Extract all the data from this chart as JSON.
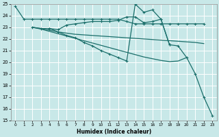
{
  "xlabel": "Humidex (Indice chaleur)",
  "xlim": [
    -0.5,
    23.5
  ],
  "ylim": [
    15,
    25
  ],
  "xticks": [
    0,
    1,
    2,
    3,
    4,
    5,
    6,
    7,
    8,
    9,
    10,
    11,
    12,
    13,
    14,
    15,
    16,
    17,
    18,
    19,
    20,
    21,
    22,
    23
  ],
  "yticks": [
    15,
    16,
    17,
    18,
    19,
    20,
    21,
    22,
    23,
    24,
    25
  ],
  "bg_color": "#c8e8e8",
  "grid_color": "#ffffff",
  "line_color": "#1a6e6a",
  "curves": [
    {
      "x": [
        0,
        1,
        2,
        3,
        4,
        5,
        6,
        7,
        8,
        9,
        10,
        11,
        12,
        13,
        14,
        15,
        16,
        17,
        18,
        19,
        20,
        21,
        22
      ],
      "y": [
        24.8,
        23.7,
        23.7,
        23.7,
        23.7,
        23.7,
        23.7,
        23.7,
        23.7,
        23.7,
        23.7,
        23.7,
        23.7,
        23.5,
        23.3,
        23.3,
        23.3,
        23.3,
        23.3,
        23.3,
        23.3,
        23.3,
        23.3
      ],
      "marker": true
    },
    {
      "x": [
        2,
        3,
        4,
        5,
        6,
        7,
        8,
        9,
        10,
        11,
        12,
        13,
        14,
        15,
        16,
        17,
        18
      ],
      "y": [
        23.0,
        22.9,
        22.9,
        22.8,
        23.2,
        23.3,
        23.4,
        23.5,
        23.5,
        23.5,
        23.6,
        23.9,
        23.9,
        23.4,
        23.5,
        23.7,
        21.5
      ],
      "marker": true
    },
    {
      "x": [
        2,
        3,
        4,
        5,
        6,
        7,
        8,
        9,
        10,
        11,
        12,
        13,
        14,
        15,
        16,
        17,
        18,
        19,
        20,
        21,
        22
      ],
      "y": [
        23.0,
        22.9,
        22.75,
        22.6,
        22.5,
        22.4,
        22.35,
        22.3,
        22.25,
        22.2,
        22.15,
        22.1,
        22.05,
        22.0,
        21.95,
        21.9,
        21.85,
        21.8,
        21.75,
        21.7,
        21.6
      ],
      "marker": false
    },
    {
      "x": [
        2,
        3,
        4,
        5,
        6,
        7,
        8,
        9,
        10,
        11,
        12,
        13,
        14,
        15,
        16,
        17,
        18,
        19,
        20
      ],
      "y": [
        23.0,
        22.85,
        22.65,
        22.45,
        22.25,
        22.05,
        21.85,
        21.65,
        21.45,
        21.25,
        21.05,
        20.85,
        20.65,
        20.45,
        20.3,
        20.15,
        20.05,
        20.1,
        20.4
      ],
      "marker": false
    },
    {
      "x": [
        4,
        5,
        6,
        7,
        8,
        9,
        10,
        11,
        12,
        13,
        14,
        15,
        16,
        17,
        18,
        19,
        20,
        21,
        22,
        23
      ],
      "y": [
        22.9,
        22.6,
        22.3,
        22.1,
        21.7,
        21.4,
        21.0,
        20.7,
        20.4,
        20.1,
        25.0,
        24.3,
        24.5,
        23.7,
        21.5,
        21.4,
        20.4,
        19.0,
        17.0,
        15.4
      ],
      "marker": true
    }
  ]
}
